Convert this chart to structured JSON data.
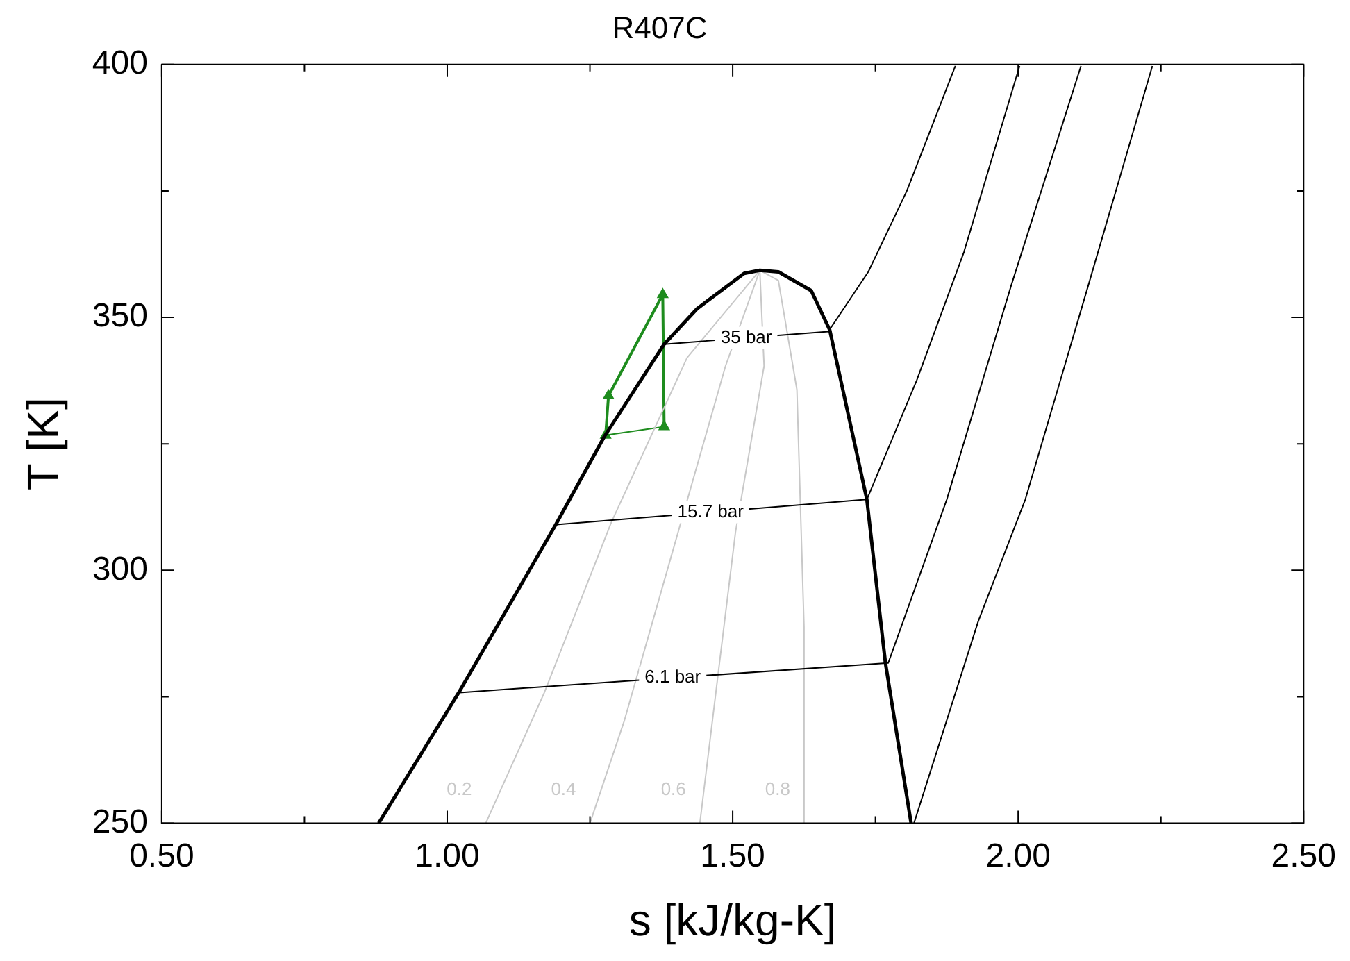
{
  "chart_data": {
    "type": "line",
    "title": "R407C",
    "xlabel": "s [kJ/kg-K]",
    "ylabel": "T [K]",
    "xlim": [
      0.5,
      2.5
    ],
    "xticks": [
      {
        "value": 0.5,
        "label": "0.50"
      },
      {
        "value": 0.75,
        "label": null
      },
      {
        "value": 1.0,
        "label": "1.00"
      },
      {
        "value": 1.25,
        "label": null
      },
      {
        "value": 1.5,
        "label": "1.50"
      },
      {
        "value": 1.75,
        "label": null
      },
      {
        "value": 2.0,
        "label": "2.00"
      },
      {
        "value": 2.25,
        "label": null
      },
      {
        "value": 2.5,
        "label": "2.50"
      }
    ],
    "ylim": [
      250,
      400
    ],
    "yticks": [
      250,
      {
        "value": 275,
        "label": null
      },
      300,
      {
        "value": 325,
        "label": null
      },
      350,
      {
        "value": 375,
        "label": null
      },
      400
    ],
    "legend": false,
    "marker": "none",
    "series": [
      {
        "color": "#000000",
        "x": [
          0.88,
          1.02,
          1.19,
          1.275,
          1.38,
          1.4375,
          1.52,
          1.5475,
          1.58,
          1.6375,
          1.67,
          1.735,
          1.7675,
          1.8125
        ],
        "values": [
          250,
          275.8,
          309,
          326.4,
          344.7,
          351.7,
          358.7,
          359.3,
          359,
          355.3,
          347.5,
          314,
          281.7,
          250
        ]
      },
      {
        "name": "35 bar",
        "color": "#000000",
        "x": [
          1.38,
          1.6675,
          1.7375,
          1.805,
          1.89
        ],
        "values": [
          344.7,
          347.2,
          359,
          375,
          399.7
        ]
      },
      {
        "name": "15.7 bar",
        "color": "#000000",
        "x": [
          1.1875,
          1.735,
          1.8225,
          1.905,
          2.0025
        ],
        "values": [
          309,
          314,
          337.6,
          362.9,
          399.7
        ]
      },
      {
        "name": "6.1 bar",
        "color": "#000000",
        "x": [
          1.0175,
          1.7725,
          1.875,
          1.9875,
          2.11
        ],
        "values": [
          275.8,
          281.7,
          314,
          356.2,
          399.7
        ]
      },
      {
        "color": "#000000",
        "x": [
          1.8175,
          1.93,
          2.0125,
          2.1225,
          2.235
        ],
        "values": [
          250,
          289.9,
          314,
          356.2,
          399.7
        ]
      },
      {
        "name": "0.2",
        "color": "#c8c8c8",
        "x": [
          1.0675,
          1.17,
          1.2875,
          1.42,
          1.5475
        ],
        "values": [
          250,
          275.8,
          309.5,
          342,
          359.3
        ]
      },
      {
        "name": "0.4",
        "color": "#c8c8c8",
        "x": [
          1.25,
          1.31,
          1.3975,
          1.4875,
          1.5475
        ],
        "values": [
          250,
          270.2,
          304.8,
          340.4,
          359.3
        ]
      },
      {
        "name": "0.6",
        "color": "#c8c8c8",
        "x": [
          1.4425,
          1.505,
          1.555,
          1.5475
        ],
        "values": [
          250,
          307.6,
          340.4,
          359.3
        ]
      },
      {
        "name": "0.8",
        "color": "#c8c8c8",
        "x": [
          1.625,
          1.625,
          1.6125,
          1.58,
          1.5475
        ],
        "values": [
          250,
          288.8,
          335.7,
          357.3,
          359.3
        ]
      },
      {
        "color": "#1e8c1e",
        "marker": "triangle",
        "x": [
          1.2775,
          1.2825,
          1.3775,
          1.38
        ],
        "values": [
          326.7,
          334.5,
          354.5,
          328.4
        ]
      },
      {
        "color": "#1e8c1e",
        "x": [
          1.2775,
          1.38
        ],
        "values": [
          326.7,
          328.4
        ]
      }
    ]
  }
}
